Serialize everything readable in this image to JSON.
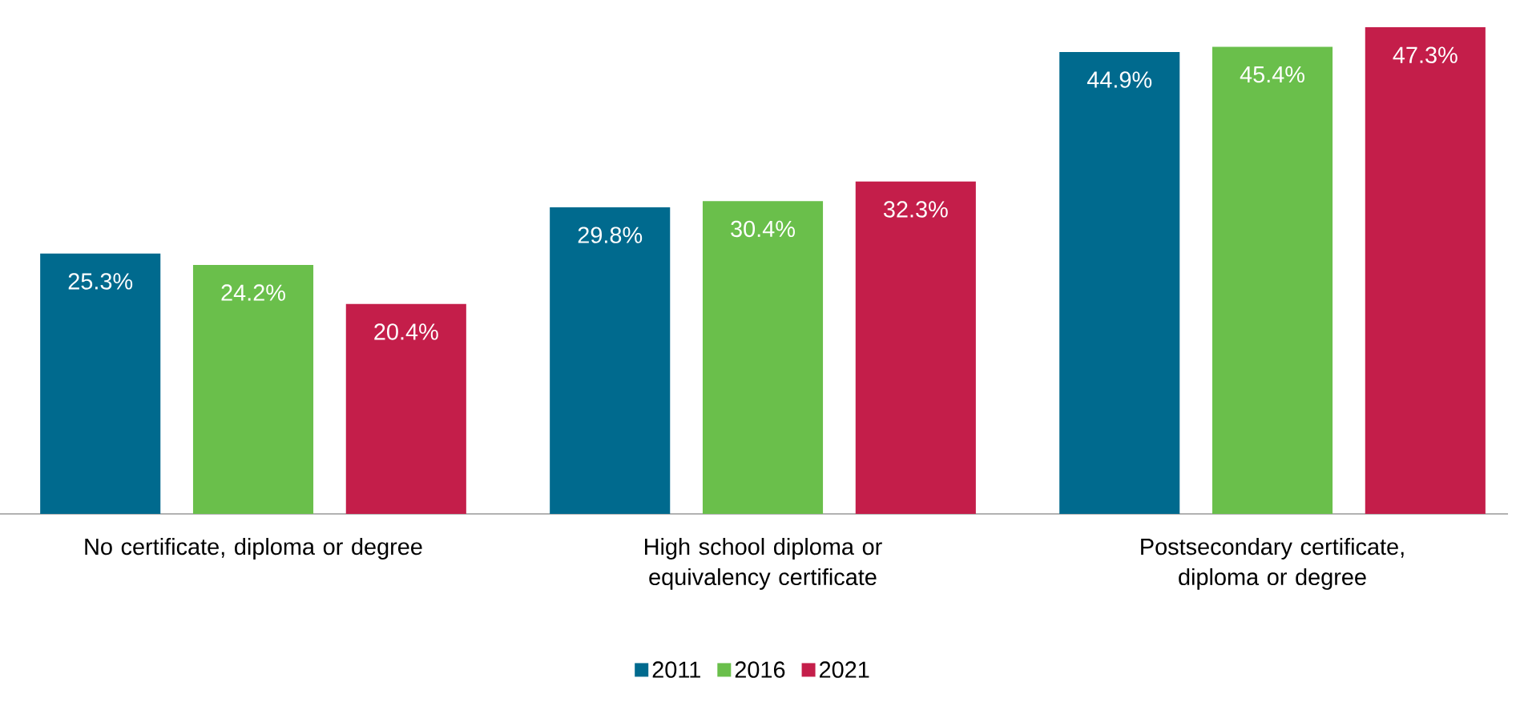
{
  "chart_data": {
    "type": "bar",
    "categories": [
      "No certificate, diploma or degree",
      "High school diploma or equivalency certificate",
      "Postsecondary certificate, diploma or degree"
    ],
    "series": [
      {
        "name": "2011",
        "color": "#006a8e",
        "values": [
          25.3,
          29.8,
          44.9
        ],
        "value_labels": [
          "25.3%",
          "29.8%",
          "44.9%"
        ]
      },
      {
        "name": "2016",
        "color": "#6abf4b",
        "values": [
          24.2,
          30.4,
          45.4
        ],
        "value_labels": [
          "24.2%",
          "30.4%",
          "45.4%"
        ]
      },
      {
        "name": "2021",
        "color": "#c41e4a",
        "values": [
          20.4,
          32.3,
          47.3
        ],
        "value_labels": [
          "20.4%",
          "32.3%",
          "47.3%"
        ]
      }
    ],
    "legend": "bottom"
  }
}
